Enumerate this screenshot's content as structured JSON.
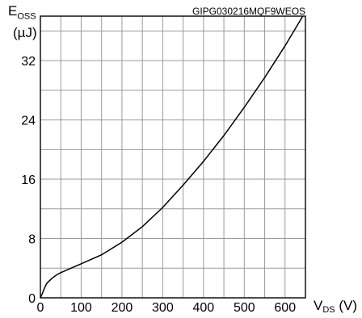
{
  "code_label": "GIPG030216MQF9WEOS",
  "chart_data": {
    "type": "line",
    "ylabel": {
      "main": "E",
      "sub": "OSS",
      "unit": "(µJ)"
    },
    "xlabel": {
      "main": "V",
      "sub": "DS",
      "unit": " (V)"
    },
    "xlim": [
      0,
      650
    ],
    "ylim": [
      0,
      38
    ],
    "x_ticks": [
      0,
      100,
      200,
      300,
      400,
      500,
      600
    ],
    "y_ticks": [
      0,
      8,
      16,
      24,
      32
    ],
    "grid": true,
    "series": [
      {
        "x": [
          0,
          5,
          10,
          15,
          20,
          30,
          40,
          50,
          75,
          100,
          150,
          200,
          250,
          300,
          350,
          400,
          450,
          500,
          550,
          600,
          650
        ],
        "y": [
          0,
          0.6,
          1.3,
          1.9,
          2.2,
          2.7,
          3.1,
          3.4,
          4.0,
          4.6,
          5.8,
          7.5,
          9.6,
          12.2,
          15.2,
          18.4,
          21.9,
          25.7,
          29.7,
          34.0,
          38.6
        ]
      }
    ],
    "colors": {
      "line": "#000000",
      "grid": "#9a9a9a",
      "axis": "#000000"
    }
  }
}
